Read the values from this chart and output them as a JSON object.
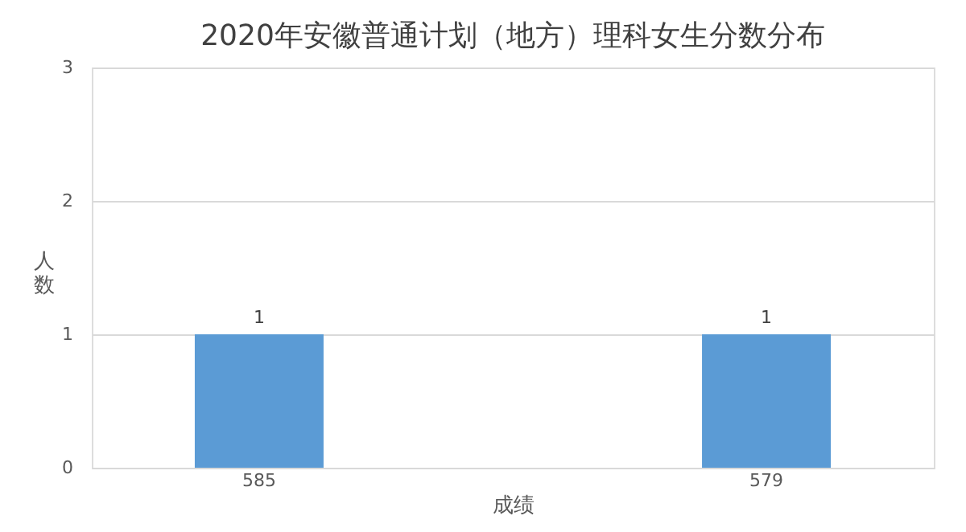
{
  "chart_data": {
    "type": "bar",
    "title": "2020年安徽普通计划（地方）理科女生分数分布",
    "xlabel": "成绩",
    "ylabel": "人数",
    "categories": [
      "585",
      "579"
    ],
    "series": [
      {
        "color": "#5b9bd5",
        "values": [
          1,
          1
        ]
      }
    ],
    "ylim": [
      0,
      3
    ],
    "yticks": [
      0,
      1,
      2,
      3
    ],
    "grid": "y",
    "data_labels": true
  }
}
